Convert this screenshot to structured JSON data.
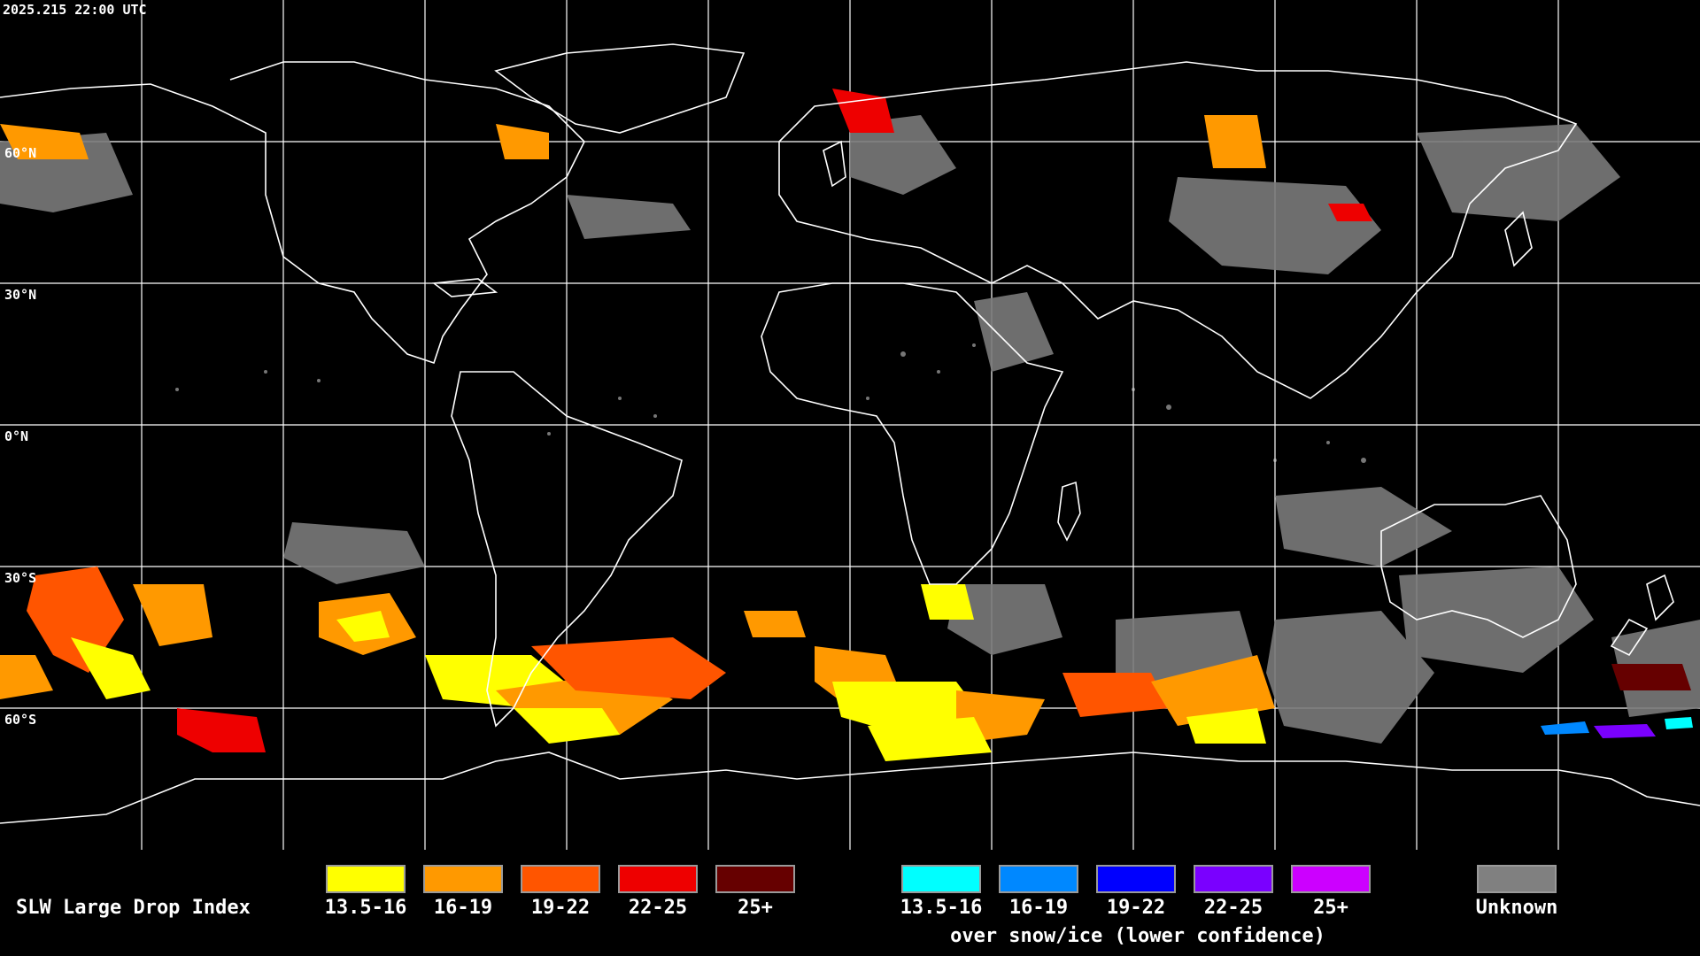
{
  "timestamp": "2025.215 22:00 UTC",
  "latitude_labels": [
    "60°N",
    "30°N",
    "0°N",
    "30°S",
    "60°S"
  ],
  "legend": {
    "title": "SLW Large Drop Index",
    "primary": [
      {
        "label": "13.5-16",
        "color": "#ffff00"
      },
      {
        "label": "16-19",
        "color": "#ff9900"
      },
      {
        "label": "19-22",
        "color": "#ff5500"
      },
      {
        "label": "22-25",
        "color": "#ee0000"
      },
      {
        "label": "25+",
        "color": "#660000"
      }
    ],
    "snow_ice": [
      {
        "label": "13.5-16",
        "color": "#00ffff"
      },
      {
        "label": "16-19",
        "color": "#0088ff"
      },
      {
        "label": "19-22",
        "color": "#0000ff"
      },
      {
        "label": "22-25",
        "color": "#7a00ff"
      },
      {
        "label": "25+",
        "color": "#cc00ff"
      }
    ],
    "snow_ice_caption": "over snow/ice (lower confidence)",
    "unknown": {
      "label": "Unknown",
      "color": "#808080"
    }
  }
}
